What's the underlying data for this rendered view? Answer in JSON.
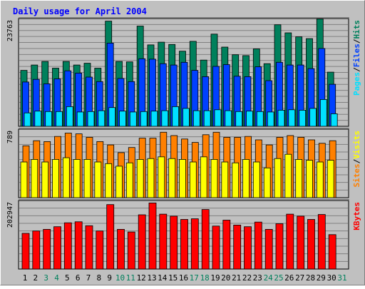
{
  "chart_data": {
    "type": "bar",
    "title": "Daily usage for April 2004",
    "colors": {
      "frame_bg": "#c0c0c0",
      "plot_bg": "#c0c0c0",
      "title": "#0000ff",
      "hits": "#00805c",
      "files": "#0040ff",
      "pages": "#00e0ff",
      "visits": "#ffff00",
      "sites": "#ff8000",
      "kbytes": "#ff0000",
      "weekend_label": "#00805c",
      "weekday_label": "#000000"
    },
    "days": [
      "1",
      "2",
      "3",
      "4",
      "5",
      "6",
      "7",
      "8",
      "9",
      "10",
      "11",
      "12",
      "13",
      "14",
      "15",
      "16",
      "17",
      "18",
      "19",
      "20",
      "21",
      "22",
      "23",
      "24",
      "25",
      "26",
      "27",
      "28",
      "29",
      "30",
      "31"
    ],
    "weekend_days": [
      3,
      4,
      10,
      11,
      17,
      18,
      24,
      25,
      31
    ],
    "panels": [
      {
        "id": "hits-files-pages",
        "scale_label": "23763",
        "ymax": 23763,
        "legend": [
          {
            "text": "Pages",
            "color": "#00e0ff"
          },
          {
            "text": "/",
            "color": "#000000"
          },
          {
            "text": "Files",
            "color": "#0040ff"
          },
          {
            "text": "/",
            "color": "#000000"
          },
          {
            "text": "Hits",
            "color": "#00805c"
          }
        ],
        "series": [
          {
            "name": "Hits",
            "color": "#00805c",
            "values": [
              12500,
              13700,
              14500,
              13000,
              14500,
              13700,
              14100,
              13000,
              23500,
              14500,
              14400,
              22400,
              18200,
              18800,
              18300,
              16800,
              19000,
              14800,
              20600,
              17700,
              16000,
              15800,
              17300,
              14000,
              22700,
              20900,
              20000,
              19600,
              24000,
              12100,
              0
            ]
          },
          {
            "name": "Files",
            "color": "#0040ff",
            "values": [
              9900,
              10500,
              9500,
              10600,
              12400,
              11900,
              11000,
              10000,
              18600,
              10700,
              10000,
              15100,
              15000,
              14000,
              13700,
              14300,
              12500,
              11100,
              13400,
              13800,
              11200,
              11100,
              13300,
              10200,
              14300,
              13700,
              13700,
              12900,
              17400,
              9400,
              0
            ]
          },
          {
            "name": "Pages",
            "color": "#00e0ff",
            "values": [
              3000,
              3400,
              3300,
              3300,
              4400,
              3200,
              3300,
              3500,
              4200,
              3400,
              3200,
              3300,
              3400,
              3500,
              4400,
              4000,
              3500,
              3500,
              3700,
              3500,
              3300,
              3400,
              3300,
              3200,
              3600,
              3700,
              3600,
              4000,
              6000,
              2800,
              0
            ]
          }
        ]
      },
      {
        "id": "visits-sites",
        "scale_label": "789",
        "ymax": 789,
        "legend": [
          {
            "text": "Sites",
            "color": "#ff8000"
          },
          {
            "text": "/",
            "color": "#000000"
          },
          {
            "text": "Visits",
            "color": "#ffff00"
          }
        ],
        "series": [
          {
            "name": "Sites",
            "color": "#ff8000",
            "values": [
              610,
              670,
              660,
              720,
              760,
              750,
              710,
              660,
              620,
              530,
              590,
              700,
              700,
              770,
              730,
              690,
              650,
              740,
              770,
              710,
              710,
              720,
              680,
              620,
              710,
              730,
              710,
              680,
              640,
              670,
              0
            ]
          },
          {
            "name": "Visits",
            "color": "#ffff00",
            "values": [
              420,
              450,
              420,
              450,
              470,
              450,
              450,
              420,
              400,
              370,
              410,
              450,
              460,
              480,
              460,
              450,
              420,
              480,
              450,
              420,
              410,
              450,
              420,
              350,
              460,
              510,
              450,
              440,
              420,
              440,
              0
            ]
          }
        ]
      },
      {
        "id": "kbytes",
        "scale_label": "202947",
        "ymax": 202947,
        "legend": [
          {
            "text": "KBytes",
            "color": "#ff0000"
          }
        ],
        "series": [
          {
            "name": "KBytes",
            "color": "#ff0000",
            "values": [
              108000,
              115000,
              120000,
              128000,
              140000,
              143000,
              131000,
              115000,
              195000,
              120000,
              112000,
              164000,
              200000,
              166000,
              160000,
              150000,
              152000,
              180000,
              130000,
              148000,
              133000,
              128000,
              142000,
              120000,
              137000,
              166000,
              160000,
              150000,
              165000,
              104000,
              0
            ]
          }
        ]
      }
    ]
  }
}
